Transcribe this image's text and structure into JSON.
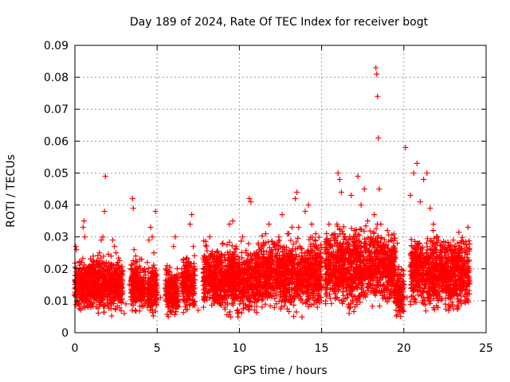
{
  "chart_data": {
    "type": "scatter",
    "title": "Day 189 of 2024, Rate Of TEC Index for receiver bogt",
    "xlabel": "GPS time / hours",
    "ylabel": "ROTI / TECUs",
    "xlim": [
      0,
      25
    ],
    "ylim": [
      0,
      0.09
    ],
    "xticks": [
      0,
      5,
      10,
      15,
      20,
      25
    ],
    "yticks": [
      0,
      0.01,
      0.02,
      0.03,
      0.04,
      0.05,
      0.06,
      0.07,
      0.08,
      0.09
    ],
    "grid": true,
    "marker": "plus",
    "colors": {
      "points": "#ff0000"
    },
    "series": [
      {
        "points": [
          [
            0.0,
            0.012
          ],
          [
            0.05,
            0.027
          ],
          [
            0.1,
            0.026
          ],
          [
            0.15,
            0.009
          ],
          [
            0.2,
            0.015
          ],
          [
            0.3,
            0.02
          ],
          [
            0.35,
            0.017
          ],
          [
            0.4,
            0.022
          ],
          [
            0.45,
            0.011
          ],
          [
            0.5,
            0.033
          ],
          [
            0.55,
            0.035
          ],
          [
            0.6,
            0.03
          ],
          [
            0.65,
            0.018
          ],
          [
            0.7,
            0.014
          ],
          [
            0.8,
            0.008
          ],
          [
            0.9,
            0.02
          ],
          [
            1.0,
            0.016
          ],
          [
            1.1,
            0.012
          ],
          [
            1.2,
            0.018
          ],
          [
            1.3,
            0.022
          ],
          [
            1.4,
            0.017
          ],
          [
            1.5,
            0.025
          ],
          [
            1.6,
            0.029
          ],
          [
            1.7,
            0.03
          ],
          [
            1.8,
            0.038
          ],
          [
            1.85,
            0.049
          ],
          [
            1.9,
            0.015
          ],
          [
            2.0,
            0.012
          ],
          [
            2.1,
            0.011
          ],
          [
            2.2,
            0.024
          ],
          [
            2.3,
            0.029
          ],
          [
            2.4,
            0.027
          ],
          [
            2.5,
            0.025
          ],
          [
            2.6,
            0.022
          ],
          [
            2.7,
            0.02
          ],
          [
            2.8,
            0.015
          ],
          [
            2.9,
            0.013
          ],
          [
            3.0,
            0.006
          ],
          [
            3.1,
            0.009
          ],
          [
            3.3,
            0.015
          ],
          [
            3.4,
            0.02
          ],
          [
            3.5,
            0.042
          ],
          [
            3.55,
            0.039
          ],
          [
            3.6,
            0.026
          ],
          [
            3.7,
            0.024
          ],
          [
            3.8,
            0.019
          ],
          [
            3.9,
            0.017
          ],
          [
            4.0,
            0.014
          ],
          [
            4.2,
            0.012
          ],
          [
            4.4,
            0.022
          ],
          [
            4.5,
            0.029
          ],
          [
            4.6,
            0.033
          ],
          [
            4.7,
            0.03
          ],
          [
            4.8,
            0.025
          ],
          [
            4.9,
            0.038
          ],
          [
            5.0,
            0.014
          ],
          [
            5.2,
            0.011
          ],
          [
            5.5,
            0.014
          ],
          [
            5.6,
            0.021
          ],
          [
            5.7,
            0.016
          ],
          [
            5.8,
            0.012
          ],
          [
            5.9,
            0.018
          ],
          [
            6.0,
            0.027
          ],
          [
            6.1,
            0.03
          ],
          [
            6.2,
            0.008
          ],
          [
            6.5,
            0.02
          ],
          [
            6.6,
            0.023
          ],
          [
            6.7,
            0.018
          ],
          [
            6.8,
            0.017
          ],
          [
            6.9,
            0.022
          ],
          [
            7.0,
            0.034
          ],
          [
            7.1,
            0.037
          ],
          [
            7.2,
            0.027
          ],
          [
            7.3,
            0.02
          ],
          [
            7.5,
            0.007
          ],
          [
            7.8,
            0.016
          ],
          [
            8.0,
            0.027
          ],
          [
            8.2,
            0.03
          ],
          [
            8.4,
            0.013
          ],
          [
            8.6,
            0.022
          ],
          [
            8.8,
            0.024
          ],
          [
            9.0,
            0.028
          ],
          [
            9.2,
            0.019
          ],
          [
            9.4,
            0.034
          ],
          [
            9.6,
            0.035
          ],
          [
            9.8,
            0.027
          ],
          [
            10.0,
            0.019
          ],
          [
            10.2,
            0.03
          ],
          [
            10.4,
            0.025
          ],
          [
            10.6,
            0.042
          ],
          [
            10.7,
            0.041
          ],
          [
            10.8,
            0.024
          ],
          [
            11.0,
            0.022
          ],
          [
            11.2,
            0.026
          ],
          [
            11.4,
            0.027
          ],
          [
            11.6,
            0.018
          ],
          [
            11.8,
            0.034
          ],
          [
            12.0,
            0.024
          ],
          [
            12.2,
            0.026
          ],
          [
            12.4,
            0.03
          ],
          [
            12.6,
            0.037
          ],
          [
            12.8,
            0.022
          ],
          [
            13.0,
            0.031
          ],
          [
            13.2,
            0.033
          ],
          [
            13.4,
            0.042
          ],
          [
            13.5,
            0.044
          ],
          [
            13.6,
            0.033
          ],
          [
            13.8,
            0.025
          ],
          [
            14.0,
            0.038
          ],
          [
            14.2,
            0.04
          ],
          [
            14.4,
            0.034
          ],
          [
            14.6,
            0.029
          ],
          [
            14.8,
            0.024
          ],
          [
            15.0,
            0.022
          ],
          [
            15.2,
            0.026
          ],
          [
            15.4,
            0.02
          ],
          [
            15.6,
            0.018
          ],
          [
            15.8,
            0.031
          ],
          [
            16.0,
            0.05
          ],
          [
            16.1,
            0.048
          ],
          [
            16.2,
            0.044
          ],
          [
            16.4,
            0.03
          ],
          [
            16.6,
            0.027
          ],
          [
            16.8,
            0.043
          ],
          [
            17.0,
            0.032
          ],
          [
            17.2,
            0.049
          ],
          [
            17.4,
            0.04
          ],
          [
            17.6,
            0.045
          ],
          [
            17.8,
            0.035
          ],
          [
            18.0,
            0.03
          ],
          [
            18.2,
            0.037
          ],
          [
            18.3,
            0.083
          ],
          [
            18.35,
            0.081
          ],
          [
            18.4,
            0.074
          ],
          [
            18.45,
            0.061
          ],
          [
            18.5,
            0.045
          ],
          [
            18.6,
            0.034
          ],
          [
            18.8,
            0.027
          ],
          [
            19.0,
            0.032
          ],
          [
            19.2,
            0.029
          ],
          [
            19.4,
            0.025
          ],
          [
            19.6,
            0.028
          ],
          [
            19.8,
            0.018
          ],
          [
            20.0,
            0.015
          ],
          [
            20.1,
            0.058
          ],
          [
            20.2,
            0.011
          ],
          [
            20.4,
            0.043
          ],
          [
            20.6,
            0.05
          ],
          [
            20.8,
            0.053
          ],
          [
            21.0,
            0.041
          ],
          [
            21.2,
            0.048
          ],
          [
            21.4,
            0.05
          ],
          [
            21.6,
            0.039
          ],
          [
            21.8,
            0.034
          ],
          [
            22.0,
            0.03
          ],
          [
            22.2,
            0.018
          ],
          [
            22.4,
            0.017
          ],
          [
            22.6,
            0.015
          ],
          [
            22.8,
            0.026
          ],
          [
            23.0,
            0.029
          ],
          [
            23.2,
            0.024
          ],
          [
            23.4,
            0.02
          ],
          [
            23.6,
            0.017
          ],
          [
            23.8,
            0.022
          ],
          [
            23.9,
            0.033
          ]
        ]
      }
    ],
    "noise_band": {
      "note_free": true,
      "segments": [
        [
          0.0,
          0.9,
          0.005,
          0.021
        ],
        [
          0.9,
          2.9,
          0.004,
          0.022
        ],
        [
          3.4,
          4.3,
          0.004,
          0.021
        ],
        [
          4.4,
          5.0,
          0.004,
          0.02
        ],
        [
          5.5,
          6.3,
          0.003,
          0.018
        ],
        [
          6.5,
          7.3,
          0.004,
          0.022
        ],
        [
          7.8,
          11.0,
          0.003,
          0.025
        ],
        [
          11.0,
          15.0,
          0.004,
          0.027
        ],
        [
          15.2,
          19.5,
          0.005,
          0.03
        ],
        [
          19.5,
          20.0,
          0.003,
          0.018
        ],
        [
          20.4,
          24.0,
          0.004,
          0.028
        ]
      ]
    }
  }
}
